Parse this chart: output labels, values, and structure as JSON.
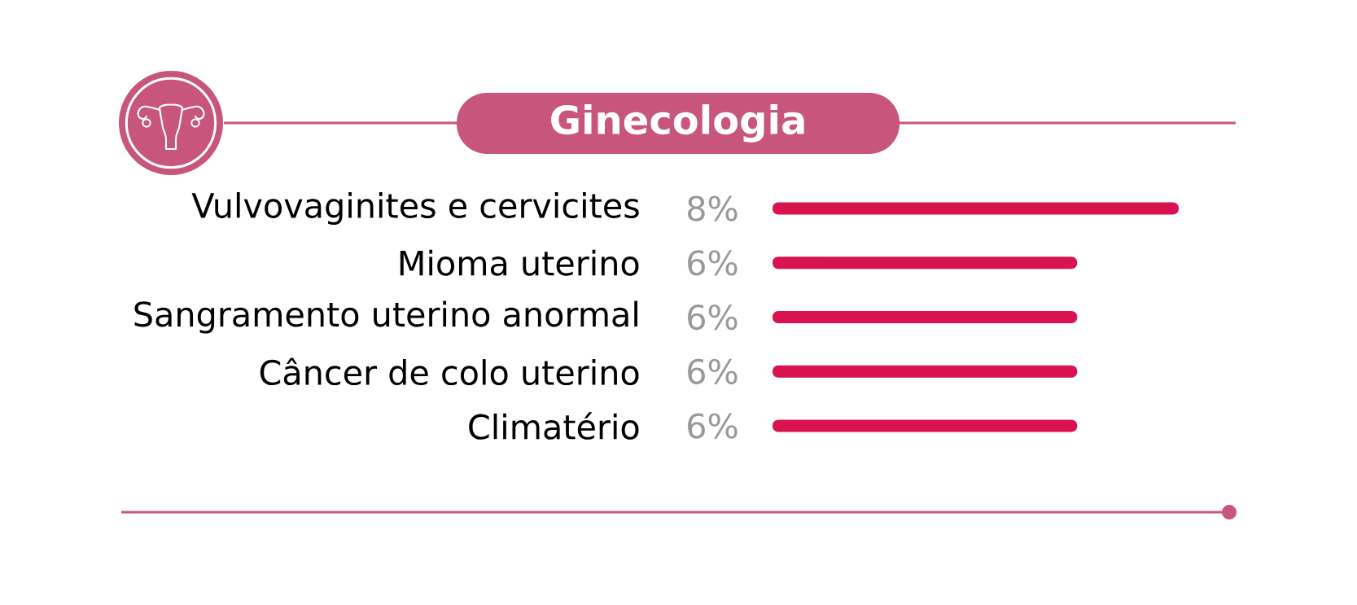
{
  "chart_data": {
    "type": "bar",
    "orientation": "horizontal",
    "title": "Ginecologia",
    "categories": [
      "Vulvovaginites e cervicites",
      "Mioma uterino",
      "Sangramento uterino anormal",
      "Câncer de colo uterino",
      "Climatério"
    ],
    "values": [
      8,
      6,
      6,
      6,
      6
    ],
    "value_labels": [
      "8%",
      "6%",
      "6%",
      "6%",
      "6%"
    ],
    "color": "#d8134f"
  }
}
